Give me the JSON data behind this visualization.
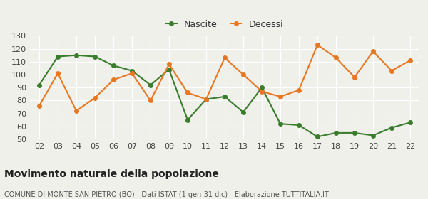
{
  "years": [
    2,
    3,
    4,
    5,
    6,
    7,
    8,
    9,
    10,
    11,
    12,
    13,
    14,
    15,
    16,
    17,
    18,
    19,
    20,
    21,
    22
  ],
  "nascite": [
    92,
    114,
    115,
    114,
    107,
    103,
    92,
    104,
    65,
    81,
    83,
    71,
    90,
    62,
    61,
    52,
    55,
    55,
    53,
    59,
    63
  ],
  "decessi": [
    76,
    101,
    72,
    82,
    96,
    101,
    80,
    108,
    86,
    81,
    113,
    100,
    87,
    83,
    88,
    123,
    113,
    98,
    118,
    103,
    111
  ],
  "nascite_color": "#3a7d2c",
  "decessi_color": "#e87722",
  "bg_color": "#f0f0eb",
  "grid_color": "#ffffff",
  "ylim": [
    50,
    130
  ],
  "yticks": [
    50,
    60,
    70,
    80,
    90,
    100,
    110,
    120,
    130
  ],
  "title": "Movimento naturale della popolazione",
  "subtitle": "COMUNE DI MONTE SAN PIETRO (BO) - Dati ISTAT (1 gen-31 dic) - Elaborazione TUTTITALIA.IT",
  "legend_nascite": "Nascite",
  "legend_decessi": "Decessi",
  "marker": "o",
  "markersize": 4,
  "linewidth": 1.5,
  "title_fontsize": 10,
  "subtitle_fontsize": 7,
  "tick_fontsize": 8,
  "legend_fontsize": 9
}
